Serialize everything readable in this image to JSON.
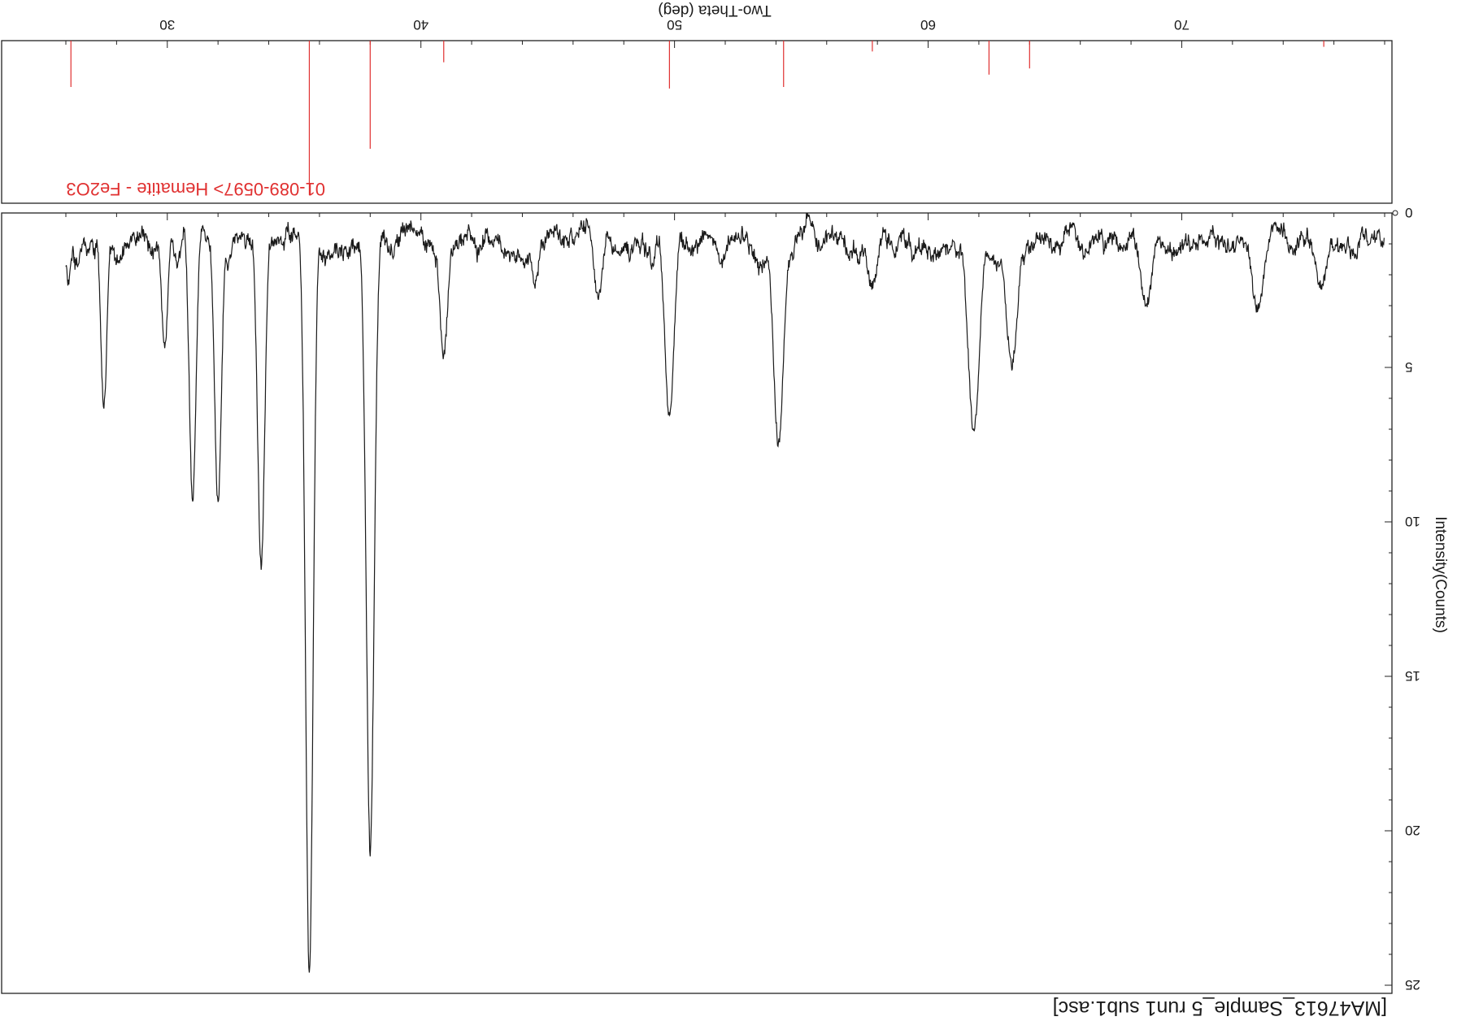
{
  "chart_data": {
    "type": "line",
    "title": "[MA47613_Sample_5 run1 sub1.asc]",
    "xlabel": "Two-Theta (deg)",
    "ylabel": "Intensity(Counts)",
    "x_ticks": [
      "30",
      "40",
      "50",
      "60",
      "70"
    ],
    "y_ticks": [
      "0",
      "5",
      "10",
      "15",
      "20",
      "25"
    ],
    "xlim": [
      26,
      78
    ],
    "ylim": [
      0,
      25
    ],
    "orientation": "rotated 180 degrees",
    "series": [
      {
        "color": "#1a1a1a",
        "peaks": [
          {
            "x": 26.1,
            "y": 2.0
          },
          {
            "x": 27.5,
            "y": 5.8
          },
          {
            "x": 29.9,
            "y": 4.1
          },
          {
            "x": 31.0,
            "y": 9.1
          },
          {
            "x": 32.0,
            "y": 8.9
          },
          {
            "x": 33.7,
            "y": 11.1
          },
          {
            "x": 35.6,
            "y": 24.5
          },
          {
            "x": 38.0,
            "y": 20.2
          },
          {
            "x": 40.9,
            "y": 4.2
          },
          {
            "x": 44.5,
            "y": 2.0
          },
          {
            "x": 47.0,
            "y": 2.6
          },
          {
            "x": 49.8,
            "y": 6.3
          },
          {
            "x": 54.1,
            "y": 7.0
          },
          {
            "x": 57.8,
            "y": 2.2
          },
          {
            "x": 61.8,
            "y": 6.7
          },
          {
            "x": 63.3,
            "y": 4.6
          },
          {
            "x": 68.6,
            "y": 2.6
          },
          {
            "x": 73.0,
            "y": 2.7
          },
          {
            "x": 75.5,
            "y": 2.0
          }
        ]
      }
    ],
    "reference": {
      "label": "01-089-0597> Hematite - Fe2O3",
      "color": "#e03030",
      "lines": [
        {
          "x": 26.2,
          "rel": 0.3
        },
        {
          "x": 35.6,
          "rel": 1.0
        },
        {
          "x": 38.0,
          "rel": 0.7
        },
        {
          "x": 40.9,
          "rel": 0.14
        },
        {
          "x": 49.8,
          "rel": 0.31
        },
        {
          "x": 54.3,
          "rel": 0.3
        },
        {
          "x": 57.8,
          "rel": 0.07
        },
        {
          "x": 62.4,
          "rel": 0.22
        },
        {
          "x": 64.0,
          "rel": 0.18
        },
        {
          "x": 75.6,
          "rel": 0.04
        }
      ]
    }
  }
}
